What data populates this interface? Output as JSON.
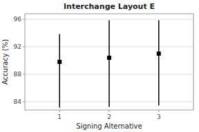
{
  "chart_data": {
    "type": "pointrange",
    "title": "Interchange Layout E",
    "x_label": "Signing Alternative",
    "y_label": "Accuracy (%)",
    "x": [
      1,
      2,
      3
    ],
    "xlim": [
      0.3,
      3.7
    ],
    "xticks": [
      1,
      2,
      3
    ],
    "ylim": [
      82.8,
      96.8
    ],
    "yticks": [
      84,
      88,
      92,
      96
    ],
    "grid": true,
    "series": [
      {
        "values": [
          89.8,
          90.4,
          91.0
        ],
        "ci_low": [
          83.2,
          83.3,
          83.5
        ],
        "ci_high": [
          93.8,
          95.8,
          95.8
        ],
        "color": "#000000",
        "marker": "square"
      }
    ]
  }
}
